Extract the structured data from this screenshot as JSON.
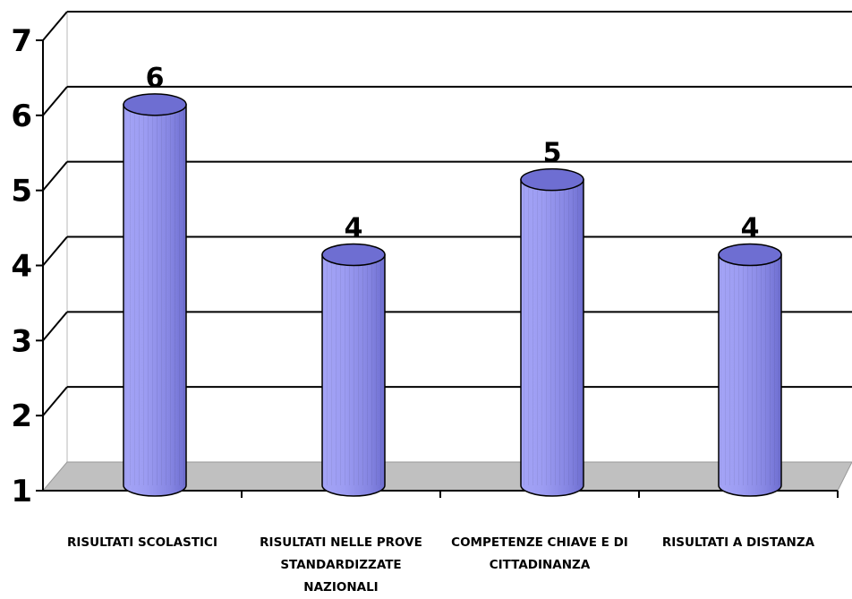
{
  "chart_data": {
    "type": "bar",
    "style": "3d-cylinder",
    "categories": [
      "RISULTATI SCOLASTICI",
      "RISULTATI NELLE PROVE STANDARDIZZATE NAZIONALI",
      "COMPETENZE CHIAVE E DI CITTADINANZA",
      "RISULTATI A DISTANZA"
    ],
    "values": [
      6,
      4,
      5,
      4
    ],
    "data_labels": [
      "6",
      "4",
      "5",
      "4"
    ],
    "yticks": [
      "1",
      "2",
      "3",
      "4",
      "5",
      "6",
      "7"
    ],
    "ylim": [
      1,
      7
    ],
    "grid": true,
    "legend": "none",
    "colors": {
      "bar": "#9a9af0",
      "bar_dark": "#6e6ed2",
      "floor": "#c0c0c0"
    }
  }
}
